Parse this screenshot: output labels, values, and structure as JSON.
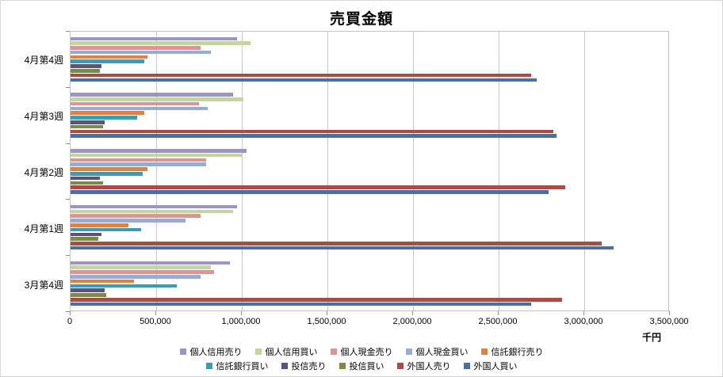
{
  "chart_data": {
    "type": "bar",
    "orientation": "horizontal",
    "title": "売買金額",
    "unit_label": "千円",
    "xlabel": "",
    "ylabel": "",
    "xlim": [
      0,
      3500000
    ],
    "x_tick_step": 500000,
    "grid": true,
    "legend_position": "bottom",
    "categories": [
      "4月第4週",
      "4月第3週",
      "4月第2週",
      "4月第1週",
      "3月第4週"
    ],
    "series": [
      {
        "id": "individual-margin-sell",
        "name": "個人信用売り",
        "color": "#9B94C4",
        "values": [
          970000,
          950000,
          1030000,
          970000,
          930000
        ]
      },
      {
        "id": "individual-margin-buy",
        "name": "個人信用買い",
        "color": "#C4D59D",
        "values": [
          1050000,
          1010000,
          1000000,
          950000,
          820000
        ]
      },
      {
        "id": "individual-cash-sell",
        "name": "個人現金売り",
        "color": "#D99694",
        "values": [
          760000,
          750000,
          790000,
          760000,
          840000
        ]
      },
      {
        "id": "individual-cash-buy",
        "name": "個人現金買い",
        "color": "#98ABD4",
        "values": [
          820000,
          800000,
          790000,
          670000,
          760000
        ]
      },
      {
        "id": "trust-bank-sell",
        "name": "信託銀行売り",
        "color": "#DE8244",
        "values": [
          450000,
          430000,
          450000,
          340000,
          370000
        ]
      },
      {
        "id": "trust-bank-buy",
        "name": "信託銀行買い",
        "color": "#3B9DB2",
        "values": [
          430000,
          390000,
          420000,
          410000,
          620000
        ]
      },
      {
        "id": "investment-trust-sell",
        "name": "投信売り",
        "color": "#5C5379",
        "values": [
          180000,
          200000,
          170000,
          180000,
          200000
        ]
      },
      {
        "id": "investment-trust-buy",
        "name": "投信買い",
        "color": "#7D8B42",
        "values": [
          170000,
          190000,
          190000,
          160000,
          210000
        ]
      },
      {
        "id": "foreigner-sell",
        "name": "外国人売り",
        "color": "#A84C46",
        "values": [
          2690000,
          2820000,
          2890000,
          3100000,
          2870000
        ]
      },
      {
        "id": "foreigner-buy",
        "name": "外国人買い",
        "color": "#4B6EA9",
        "values": [
          2720000,
          2840000,
          2790000,
          3170000,
          2690000
        ]
      }
    ]
  }
}
